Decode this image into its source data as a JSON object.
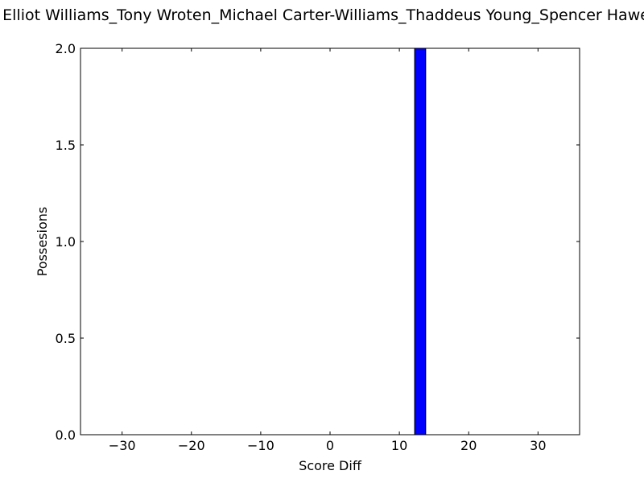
{
  "chart_data": {
    "type": "bar",
    "title": "Elliot Williams_Tony Wroten_Michael Carter-Williams_Thaddeus Young_Spencer Hawes",
    "xlabel": "Score Diff",
    "ylabel": "Possesions",
    "xlim": [
      -36,
      36
    ],
    "ylim": [
      0,
      2
    ],
    "xticks": [
      -30,
      -20,
      -10,
      0,
      10,
      20,
      30
    ],
    "xtick_labels": [
      "−30",
      "−20",
      "−10",
      "0",
      "10",
      "20",
      "30"
    ],
    "yticks": [
      0,
      0.5,
      1,
      1.5,
      2
    ],
    "ytick_labels": [
      "0.0",
      "0.5",
      "1.0",
      "1.5",
      "2.0"
    ],
    "bars": [
      {
        "x0": 12.2,
        "x1": 13.8,
        "value": 2
      }
    ],
    "bar_color": "#0000ff",
    "grid": false
  }
}
